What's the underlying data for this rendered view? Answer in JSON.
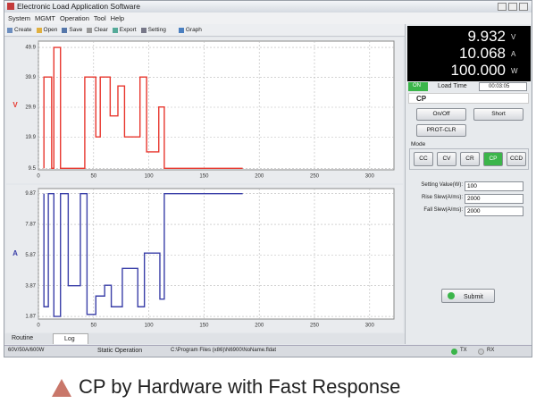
{
  "window": {
    "title": "Electronic Load Application Software",
    "menu": [
      "System",
      "MGMT",
      "Operation",
      "Tool",
      "Help"
    ],
    "toolbar": [
      "Create",
      "Open",
      "Save",
      "Clear",
      "Export",
      "Setting",
      "Graph"
    ]
  },
  "chart_data": [
    {
      "type": "line",
      "y_label": "V",
      "color": "#e8372e",
      "grid": true,
      "x": [
        5,
        5,
        12,
        12,
        14,
        14,
        20,
        20,
        42,
        42,
        52,
        52,
        56,
        56,
        65,
        65,
        72,
        72,
        78,
        78,
        92,
        92,
        98,
        98,
        109,
        109,
        114,
        114,
        185
      ],
      "values": [
        9.5,
        40,
        40,
        9.5,
        9.5,
        49.9,
        49.9,
        9.5,
        9.5,
        40,
        40,
        20,
        20,
        40,
        40,
        27,
        27,
        37,
        37,
        20,
        20,
        40,
        40,
        15,
        15,
        30,
        30,
        9.5,
        9.5
      ],
      "xlim": [
        0,
        322
      ],
      "ylim": [
        9,
        52
      ],
      "xticks": [
        0,
        50,
        100,
        150,
        200,
        250,
        300
      ],
      "yticks": [
        9.5,
        19.9,
        29.9,
        39.9,
        49.9
      ]
    },
    {
      "type": "line",
      "y_label": "A",
      "color": "#3a3fa8",
      "grid": true,
      "x": [
        5,
        5,
        9,
        9,
        14,
        14,
        20,
        20,
        27,
        27,
        38,
        38,
        44,
        44,
        52,
        52,
        60,
        60,
        66,
        66,
        76,
        76,
        90,
        90,
        96,
        96,
        110,
        110,
        114,
        114,
        185
      ],
      "values": [
        9.87,
        2.5,
        2.5,
        9.87,
        9.87,
        1.87,
        1.87,
        9.87,
        9.87,
        3.87,
        3.87,
        9.87,
        9.87,
        2,
        2,
        3.2,
        3.2,
        3.9,
        3.9,
        2.5,
        2.5,
        5,
        5,
        2.5,
        2.5,
        6,
        6,
        3,
        3,
        9.87,
        9.87
      ],
      "xlim": [
        0,
        322
      ],
      "ylim": [
        1.7,
        10.2
      ],
      "xticks": [
        0,
        50,
        100,
        150,
        200,
        250,
        300
      ],
      "yticks": [
        1.87,
        3.87,
        5.87,
        7.87,
        9.87
      ]
    }
  ],
  "readouts": [
    {
      "value": "9.932",
      "unit": "V"
    },
    {
      "value": "10.068",
      "unit": "A"
    },
    {
      "value": "100.000",
      "unit": "W"
    }
  ],
  "status": {
    "state": "ON",
    "load_time_label": "Load Time",
    "load_time": "00:03:05",
    "mode": "CP"
  },
  "buttons": [
    "On/Off",
    "Short",
    "PROT-CLR"
  ],
  "mode": {
    "label": "Mode",
    "options": [
      "CC",
      "CV",
      "CR",
      "CP",
      "CCD"
    ],
    "active": 3
  },
  "settings": [
    {
      "label": "Setting Value(W):",
      "value": "100"
    },
    {
      "label": "Rise Slew(A/ms):",
      "value": "2000"
    },
    {
      "label": "Fall Slew(A/ms):",
      "value": "2000"
    }
  ],
  "submit": "Submit",
  "tabs": [
    "Routine",
    "Log"
  ],
  "status_bar": [
    "60V/50A/600W",
    "Static Operation",
    "C:\\Program Files (x86)\\N6900\\NoName.fldat",
    "TX",
    "RX"
  ],
  "caption": "CP by Hardware with Fast Response"
}
